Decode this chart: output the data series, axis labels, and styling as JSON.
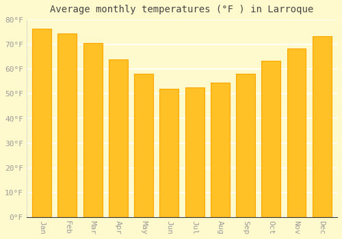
{
  "title": "Average monthly temperatures (°F ) in Larroque",
  "months": [
    "Jan",
    "Feb",
    "Mar",
    "Apr",
    "May",
    "Jun",
    "Jul",
    "Aug",
    "Sep",
    "Oct",
    "Nov",
    "Dec"
  ],
  "values": [
    76.5,
    74.5,
    70.5,
    64.0,
    58.0,
    52.0,
    52.5,
    54.5,
    58.0,
    63.5,
    68.5,
    73.5
  ],
  "bar_color_face": "#FFC125",
  "bar_color_edge": "#FFA500",
  "background_color": "#FFFACD",
  "grid_color": "#FFFFFF",
  "ylim": [
    0,
    80
  ],
  "ytick_step": 10,
  "title_fontsize": 10,
  "tick_fontsize": 8,
  "tick_label_color": "#999999",
  "title_color": "#444444"
}
